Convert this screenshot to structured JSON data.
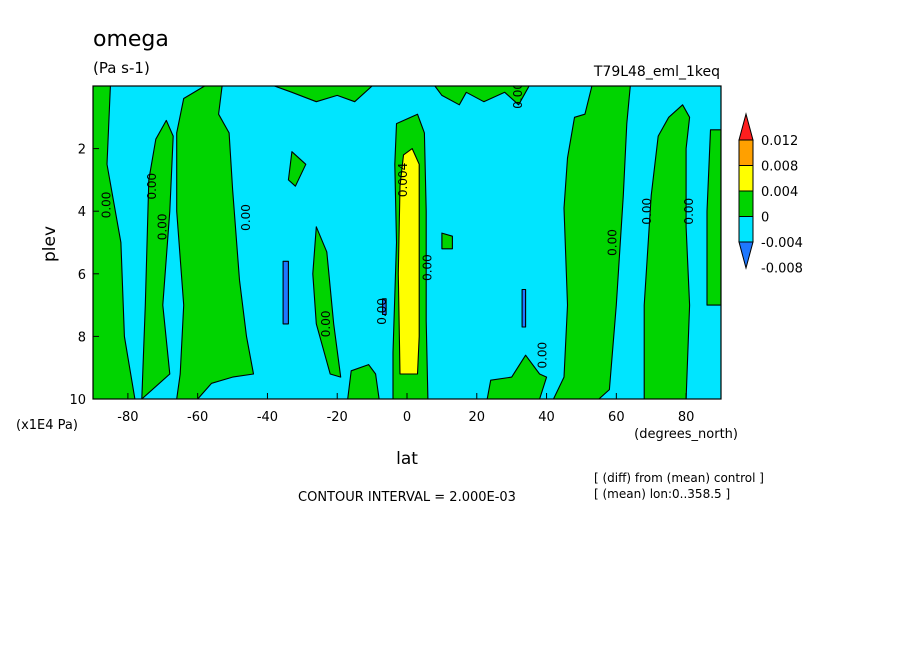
{
  "chart_data": {
    "type": "heatmap",
    "title": "omega",
    "units": "(Pa s-1)",
    "run_label": "T79L48_eml_1keq",
    "xlabel": "lat",
    "x_unit_label": "(degrees_north)",
    "ylabel": "plev",
    "y_unit_label": "(x1E4 Pa)",
    "xlim": [
      -90,
      90
    ],
    "ylim": [
      10,
      0
    ],
    "x_ticks": [
      -80,
      -60,
      -40,
      -20,
      0,
      20,
      40,
      60,
      80
    ],
    "x_tick_labels": [
      "-80",
      "-60",
      "-40",
      "-20",
      "0",
      "20",
      "40",
      "60",
      "80"
    ],
    "y_ticks": [
      2,
      4,
      6,
      8,
      10
    ],
    "y_tick_labels": [
      "2",
      "4",
      "6",
      "8",
      "10"
    ],
    "contour_interval_text": "CONTOUR INTERVAL = 2.000E-03",
    "footnotes": [
      "[ (diff) from (mean) control ]",
      "[ (mean) lon:0..358.5 ]"
    ],
    "colorbar": {
      "levels": [
        -0.008,
        -0.004,
        0,
        0.004,
        0.008,
        0.012
      ],
      "labels": [
        "-0.008",
        "-0.004",
        "0",
        "0.004",
        "0.008",
        "0.012"
      ],
      "colors": [
        "#1e78ff",
        "#00e5ff",
        "#00d400",
        "#ffff00",
        "#ffa000",
        "#ff1e1e"
      ]
    },
    "contour_labels": [
      {
        "text": "0.00",
        "lat": -85,
        "plev": 3.8
      },
      {
        "text": "0.00",
        "lat": -72,
        "plev": 3.2
      },
      {
        "text": "0.00",
        "lat": -69,
        "plev": 4.5
      },
      {
        "text": "0.00",
        "lat": -45,
        "plev": 4.2
      },
      {
        "text": "0.00",
        "lat": -22,
        "plev": 7.6
      },
      {
        "text": "0.00",
        "lat": -6,
        "plev": 7.2
      },
      {
        "text": "0.004",
        "lat": 0,
        "plev": 3.0
      },
      {
        "text": "0.00",
        "lat": 7,
        "plev": 5.8
      },
      {
        "text": "0.00",
        "lat": 33,
        "plev": 0.3
      },
      {
        "text": "0.00",
        "lat": 40,
        "plev": 8.6
      },
      {
        "text": "0.00",
        "lat": 60,
        "plev": 5.0
      },
      {
        "text": "0.00",
        "lat": 70,
        "plev": 4.0
      },
      {
        "text": "0.00",
        "lat": 82,
        "plev": 4.0
      }
    ],
    "filled_regions": [
      {
        "value": 0.002,
        "color": "green",
        "polygon": [
          [
            -90,
            10
          ],
          [
            -90,
            0
          ],
          [
            -85,
            0
          ],
          [
            -86,
            2.5
          ],
          [
            -82,
            5
          ],
          [
            -81,
            8
          ],
          [
            -78,
            10
          ]
        ]
      },
      {
        "value": 0.002,
        "color": "green",
        "polygon": [
          [
            -76,
            10
          ],
          [
            -75,
            7
          ],
          [
            -74,
            3
          ],
          [
            -72,
            1.7
          ],
          [
            -69,
            1.1
          ],
          [
            -67,
            1.6
          ],
          [
            -68,
            4
          ],
          [
            -70,
            7
          ],
          [
            -68,
            9.2
          ]
        ]
      },
      {
        "value": 0.002,
        "color": "green",
        "polygon": [
          [
            -66,
            10
          ],
          [
            -65,
            9.2
          ],
          [
            -64,
            7
          ],
          [
            -66,
            4
          ],
          [
            -66,
            1.5
          ],
          [
            -64,
            0.4
          ],
          [
            -58,
            0
          ],
          [
            -53,
            0
          ],
          [
            -54,
            0.9
          ],
          [
            -51,
            1.5
          ],
          [
            -50,
            3.3
          ],
          [
            -48,
            6.2
          ],
          [
            -46,
            8
          ],
          [
            -44,
            9.2
          ],
          [
            -50,
            9.3
          ],
          [
            -56,
            9.5
          ],
          [
            -60,
            10
          ]
        ]
      },
      {
        "value": 0.002,
        "color": "green",
        "polygon": [
          [
            -33,
            2.1
          ],
          [
            -29,
            2.5
          ],
          [
            -32,
            3.2
          ],
          [
            -34,
            3.0
          ]
        ]
      },
      {
        "value": 0.002,
        "color": "green",
        "polygon": [
          [
            -26,
            4.5
          ],
          [
            -23,
            5.3
          ],
          [
            -21,
            7.6
          ],
          [
            -19,
            9.3
          ],
          [
            -22,
            9.2
          ],
          [
            -26,
            7.6
          ],
          [
            -27,
            6
          ]
        ]
      },
      {
        "value": 0.002,
        "color": "green",
        "polygon": [
          [
            -17,
            10
          ],
          [
            -16,
            9.1
          ],
          [
            -11,
            8.9
          ],
          [
            -9,
            9.2
          ],
          [
            -8,
            10
          ]
        ]
      },
      {
        "value": 0.002,
        "color": "green",
        "polygon": [
          [
            -4,
            10
          ],
          [
            -4,
            8.5
          ],
          [
            -3,
            5
          ],
          [
            -3.5,
            2.5
          ],
          [
            -3,
            1.2
          ],
          [
            3,
            0.9
          ],
          [
            5,
            1.5
          ],
          [
            5.5,
            4
          ],
          [
            5.5,
            7.5
          ],
          [
            6,
            10
          ]
        ]
      },
      {
        "value": 0.006,
        "color": "yellow",
        "polygon": [
          [
            -2,
            9.2
          ],
          [
            -2.5,
            6
          ],
          [
            -2,
            3.2
          ],
          [
            -1,
            2.2
          ],
          [
            1.5,
            2.0
          ],
          [
            3.5,
            2.5
          ],
          [
            3.5,
            5
          ],
          [
            3.5,
            8
          ],
          [
            3,
            9.2
          ]
        ]
      },
      {
        "value": 0.002,
        "color": "green",
        "polygon": [
          [
            10,
            4.7
          ],
          [
            13,
            4.8
          ],
          [
            13,
            5.2
          ],
          [
            10,
            5.2
          ]
        ]
      },
      {
        "value": 0.002,
        "color": "green",
        "polygon": [
          [
            23,
            10
          ],
          [
            24,
            9.4
          ],
          [
            30,
            9.3
          ],
          [
            34,
            8.6
          ],
          [
            38,
            9.2
          ],
          [
            40,
            9.3
          ],
          [
            38,
            10
          ]
        ]
      },
      {
        "value": 0.002,
        "color": "green",
        "polygon": [
          [
            42,
            10
          ],
          [
            45,
            9.3
          ],
          [
            46,
            7
          ],
          [
            45,
            3.9
          ],
          [
            46,
            2.3
          ],
          [
            48,
            1.0
          ],
          [
            51,
            0.9
          ],
          [
            53,
            0
          ],
          [
            64,
            0
          ],
          [
            63,
            1.2
          ],
          [
            62,
            3.5
          ],
          [
            60,
            7
          ],
          [
            58,
            9.7
          ],
          [
            55,
            10
          ]
        ]
      },
      {
        "value": 0.002,
        "color": "green",
        "polygon": [
          [
            68,
            10
          ],
          [
            68,
            7
          ],
          [
            70,
            3.5
          ],
          [
            72,
            1.6
          ],
          [
            75,
            1.0
          ],
          [
            79,
            0.6
          ],
          [
            81,
            1
          ],
          [
            80,
            2
          ],
          [
            80,
            4.5
          ],
          [
            81,
            7
          ],
          [
            80,
            10
          ]
        ]
      },
      {
        "value": 0.002,
        "color": "green",
        "polygon": [
          [
            86,
            7
          ],
          [
            86,
            4
          ],
          [
            87,
            1.4
          ],
          [
            90,
            1.4
          ],
          [
            90,
            7
          ]
        ]
      },
      {
        "value": 0.002,
        "color": "green",
        "polygon": [
          [
            -60,
            0
          ],
          [
            -38,
            0
          ],
          [
            -33,
            0.2
          ],
          [
            -26,
            0.5
          ],
          [
            -20,
            0.3
          ],
          [
            -15,
            0.5
          ],
          [
            -10,
            0
          ],
          [
            -60,
            0
          ]
        ]
      },
      {
        "value": 0.002,
        "color": "green",
        "polygon": [
          [
            8,
            0
          ],
          [
            10,
            0.3
          ],
          [
            15,
            0.6
          ],
          [
            17,
            0.2
          ],
          [
            22,
            0.5
          ],
          [
            28,
            0.2
          ],
          [
            32,
            0.6
          ],
          [
            35,
            0
          ],
          [
            8,
            0
          ]
        ]
      },
      {
        "value": -0.006,
        "color": "blue",
        "polygon": [
          [
            -35.5,
            5.6
          ],
          [
            -34,
            5.6
          ],
          [
            -34,
            7.6
          ],
          [
            -35.5,
            7.6
          ]
        ]
      },
      {
        "value": -0.006,
        "color": "blue",
        "polygon": [
          [
            33,
            6.5
          ],
          [
            34,
            6.5
          ],
          [
            34,
            7.7
          ],
          [
            33,
            7.7
          ]
        ]
      },
      {
        "value": -0.006,
        "color": "blue",
        "polygon": [
          [
            -7,
            6.8
          ],
          [
            -6,
            6.8
          ],
          [
            -6,
            7.3
          ],
          [
            -7,
            7.3
          ]
        ]
      }
    ]
  }
}
